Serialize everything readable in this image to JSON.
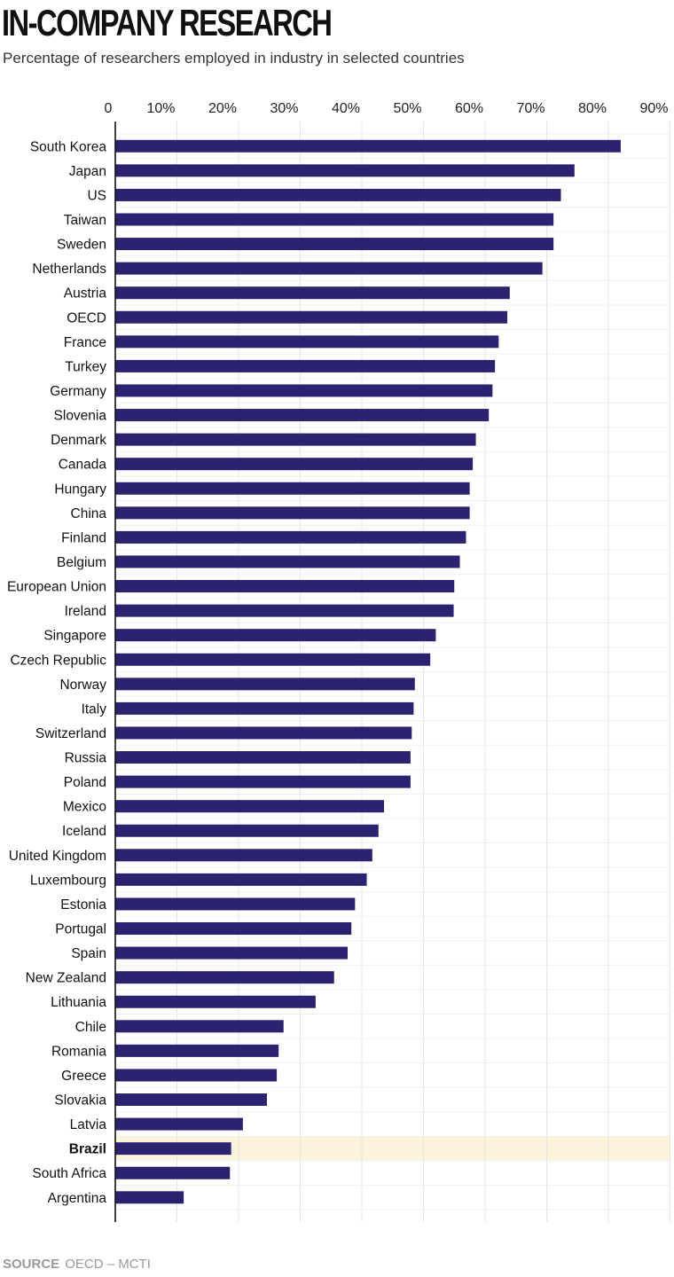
{
  "title": "IN-COMPANY RESEARCH",
  "subtitle": "Percentage of researchers employed in industry in selected countries",
  "source_label": "SOURCE",
  "source_text": "OECD – MCTI",
  "chart_data": {
    "type": "bar",
    "orientation": "horizontal",
    "x_ticks": [
      "0",
      "10%",
      "20%",
      "30%",
      "40%",
      "50%",
      "60%",
      "70%",
      "80%",
      "90%"
    ],
    "xlim": [
      0,
      90
    ],
    "grid": true,
    "bar_color": "#2b2270",
    "highlight_color": "#fbf3dc",
    "highlight_category": "Brazil",
    "categories": [
      "South Korea",
      "Japan",
      "US",
      "Taiwan",
      "Sweden",
      "Netherlands",
      "Austria",
      "OECD",
      "France",
      "Turkey",
      "Germany",
      "Slovenia",
      "Denmark",
      "Canada",
      "Hungary",
      "China",
      "Finland",
      "Belgium",
      "European Union",
      "Ireland",
      "Singapore",
      "Czech Republic",
      "Norway",
      "Italy",
      "Switzerland",
      "Russia",
      "Poland",
      "Mexico",
      "Iceland",
      "United Kingdom",
      "Luxembourg",
      "Estonia",
      "Portugal",
      "Spain",
      "New Zealand",
      "Lithuania",
      "Chile",
      "Romania",
      "Greece",
      "Slovakia",
      "Latvia",
      "Brazil",
      "South Africa",
      "Argentina"
    ],
    "values": [
      82.0,
      74.5,
      72.3,
      71.1,
      71.1,
      69.3,
      64.0,
      63.6,
      62.2,
      61.6,
      61.2,
      60.6,
      58.5,
      58.0,
      57.5,
      57.5,
      56.9,
      55.9,
      55.0,
      54.9,
      52.0,
      51.1,
      48.6,
      48.4,
      48.1,
      47.9,
      47.9,
      43.6,
      42.7,
      41.7,
      40.8,
      38.9,
      38.3,
      37.7,
      35.5,
      32.5,
      27.3,
      26.5,
      26.2,
      24.6,
      20.7,
      18.8,
      18.6,
      11.1
    ]
  }
}
